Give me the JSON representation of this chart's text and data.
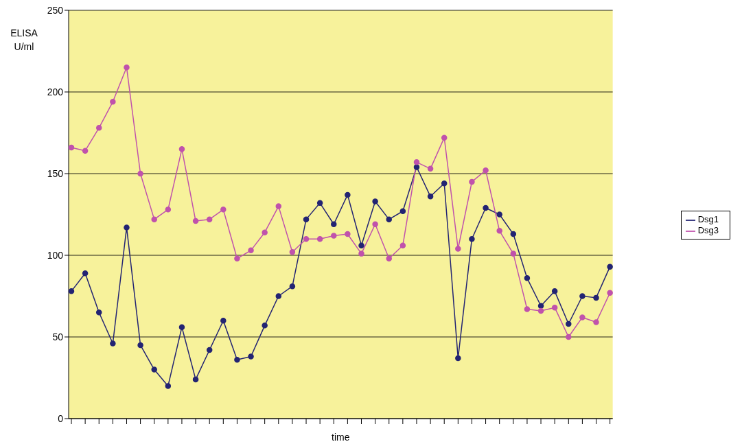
{
  "chart_data": {
    "type": "line",
    "xlabel": "time",
    "ylabel": "ELISA U/ml",
    "categories": [
      null,
      null,
      null,
      null,
      null,
      null,
      null,
      null,
      null,
      null,
      null,
      null,
      null,
      null,
      null,
      null,
      null,
      null,
      null,
      null,
      null,
      null,
      null,
      null,
      null,
      null,
      null,
      null,
      null,
      null,
      null,
      null,
      null,
      null,
      null,
      null,
      null,
      null,
      null,
      null
    ],
    "ylim": [
      0,
      250
    ],
    "yticks": [
      0,
      50,
      100,
      150,
      200,
      250
    ],
    "grid": "y",
    "legend": "right",
    "marker": "circle",
    "series": [
      {
        "name": "Dsg1",
        "color": "#232473",
        "values": [
          78,
          89,
          65,
          46,
          117,
          45,
          30,
          20,
          56,
          24,
          42,
          60,
          36,
          38,
          57,
          75,
          81,
          122,
          132,
          119,
          137,
          106,
          133,
          122,
          127,
          154,
          136,
          144,
          37,
          110,
          129,
          125,
          113,
          86,
          69,
          78,
          58,
          75,
          74,
          93
        ]
      },
      {
        "name": "Dsg3",
        "color": "#c052ac",
        "values": [
          166,
          164,
          178,
          194,
          215,
          150,
          122,
          128,
          165,
          121,
          122,
          128,
          98,
          103,
          114,
          130,
          102,
          110,
          110,
          112,
          113,
          101,
          119,
          98,
          106,
          157,
          153,
          172,
          104,
          145,
          152,
          115,
          101,
          67,
          66,
          68,
          50,
          62,
          59,
          77
        ]
      }
    ]
  }
}
